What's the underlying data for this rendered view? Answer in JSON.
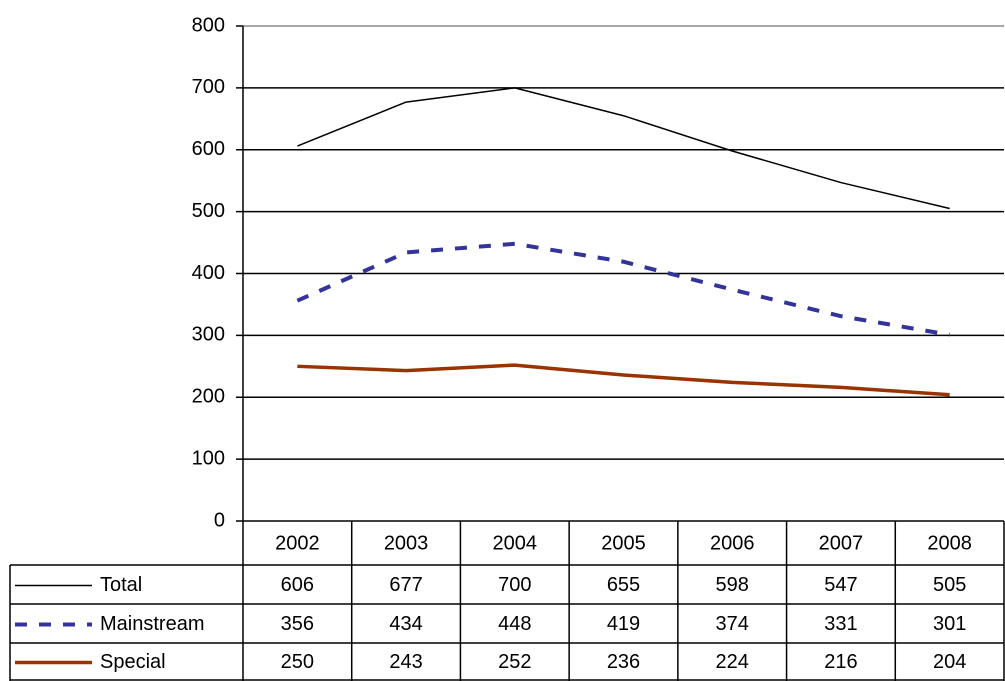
{
  "chart_data": {
    "type": "line",
    "categories": [
      "2002",
      "2003",
      "2004",
      "2005",
      "2006",
      "2007",
      "2008"
    ],
    "series": [
      {
        "name": "Total",
        "color": "#000000",
        "line_style": "solid",
        "line_width": 1.5,
        "values": [
          606,
          677,
          700,
          655,
          598,
          547,
          505
        ]
      },
      {
        "name": "Mainstream",
        "color": "#333399",
        "line_style": "dashed",
        "line_width": 4,
        "values": [
          356,
          434,
          448,
          419,
          374,
          331,
          301
        ]
      },
      {
        "name": "Special",
        "color": "#993300",
        "line_style": "solid",
        "line_width": 3.5,
        "values": [
          250,
          243,
          252,
          236,
          224,
          216,
          204
        ]
      }
    ],
    "ylim": [
      0,
      800
    ],
    "yticks": [
      0,
      100,
      200,
      300,
      400,
      500,
      600,
      700,
      800
    ],
    "grid": true,
    "data_table": true
  }
}
